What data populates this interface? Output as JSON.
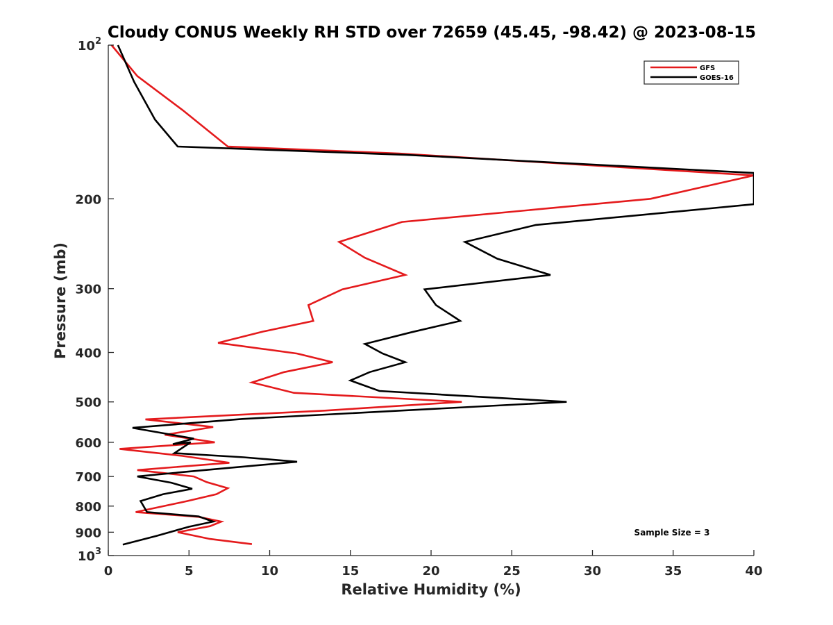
{
  "chart_data": {
    "type": "line",
    "title": "Cloudy CONUS Weekly RH STD over 72659 (45.45, -98.42) @ 2023-08-15",
    "xlabel": "Relative Humidity (%)",
    "ylabel": "Pressure (mb)",
    "xlim": [
      0,
      40
    ],
    "ylim": [
      100,
      1000
    ],
    "y_scale": "log",
    "y_reversed": true,
    "x_ticks": [
      0,
      5,
      10,
      15,
      20,
      25,
      30,
      35,
      40
    ],
    "y_ticks": [
      {
        "value": 100,
        "base": "10",
        "exp": "2"
      },
      {
        "value": 200,
        "label": "200"
      },
      {
        "value": 300,
        "label": "300"
      },
      {
        "value": 400,
        "label": "400"
      },
      {
        "value": 500,
        "label": "500"
      },
      {
        "value": 600,
        "label": "600"
      },
      {
        "value": 700,
        "label": "700"
      },
      {
        "value": 800,
        "label": "800"
      },
      {
        "value": 900,
        "label": "900"
      },
      {
        "value": 1000,
        "base": "10",
        "exp": "3"
      }
    ],
    "grid": false,
    "legend_position": "top-right",
    "annotation": "Sample Size = 3",
    "series": [
      {
        "name": "GFS",
        "color": "#e41a1c",
        "points": [
          [
            0.2,
            100
          ],
          [
            1.8,
            115
          ],
          [
            4.6,
            134
          ],
          [
            7.4,
            158
          ],
          [
            18,
            163
          ],
          [
            40,
            180
          ],
          [
            33.6,
            200
          ],
          [
            18.2,
            222
          ],
          [
            14.3,
            243
          ],
          [
            15.9,
            261
          ],
          [
            18.4,
            282
          ],
          [
            14.5,
            301
          ],
          [
            12.4,
            323
          ],
          [
            12.7,
            347
          ],
          [
            9.6,
            364
          ],
          [
            6.8,
            383
          ],
          [
            11.7,
            402
          ],
          [
            13.9,
            418
          ],
          [
            10.9,
            437
          ],
          [
            8.9,
            458
          ],
          [
            11.5,
            480
          ],
          [
            21.9,
            500
          ],
          [
            13.4,
            520
          ],
          [
            2.3,
            541
          ],
          [
            6.5,
            560
          ],
          [
            3.5,
            580
          ],
          [
            6.6,
            600
          ],
          [
            0.7,
            618
          ],
          [
            4.6,
            638
          ],
          [
            7.5,
            658
          ],
          [
            1.8,
            680
          ],
          [
            5.3,
            700
          ],
          [
            6.1,
            718
          ],
          [
            7.4,
            738
          ],
          [
            6.7,
            758
          ],
          [
            4.9,
            782
          ],
          [
            1.7,
            822
          ],
          [
            5.6,
            840
          ],
          [
            7.0,
            858
          ],
          [
            6.3,
            876
          ],
          [
            4.3,
            900
          ],
          [
            6.3,
            928
          ],
          [
            8.9,
            950
          ]
        ]
      },
      {
        "name": "GOES-16",
        "color": "#000000",
        "points": [
          [
            0.6,
            100
          ],
          [
            1.6,
            118
          ],
          [
            2.9,
            140
          ],
          [
            4.3,
            158
          ],
          [
            18.4,
            164
          ],
          [
            40,
            178
          ],
          [
            40,
            205
          ],
          [
            26.5,
            225
          ],
          [
            22.1,
            243
          ],
          [
            24.1,
            262
          ],
          [
            27.4,
            282
          ],
          [
            19.6,
            301
          ],
          [
            20.3,
            323
          ],
          [
            21.8,
            347
          ],
          [
            18.8,
            365
          ],
          [
            15.9,
            385
          ],
          [
            17.0,
            402
          ],
          [
            18.4,
            418
          ],
          [
            16.2,
            437
          ],
          [
            15.0,
            454
          ],
          [
            16.8,
            476
          ],
          [
            28.4,
            500
          ],
          [
            8.3,
            540
          ],
          [
            1.5,
            562
          ],
          [
            5.3,
            590
          ],
          [
            4.0,
            605
          ],
          [
            5.1,
            600
          ],
          [
            4.1,
            630
          ],
          [
            8.4,
            642
          ],
          [
            11.7,
            655
          ],
          [
            4.9,
            685
          ],
          [
            1.8,
            700
          ],
          [
            3.9,
            720
          ],
          [
            5.2,
            740
          ],
          [
            3.4,
            758
          ],
          [
            2.0,
            782
          ],
          [
            2.4,
            822
          ],
          [
            5.6,
            838
          ],
          [
            6.5,
            858
          ],
          [
            5.0,
            878
          ],
          [
            3.0,
            915
          ],
          [
            0.9,
            952
          ]
        ]
      }
    ]
  }
}
